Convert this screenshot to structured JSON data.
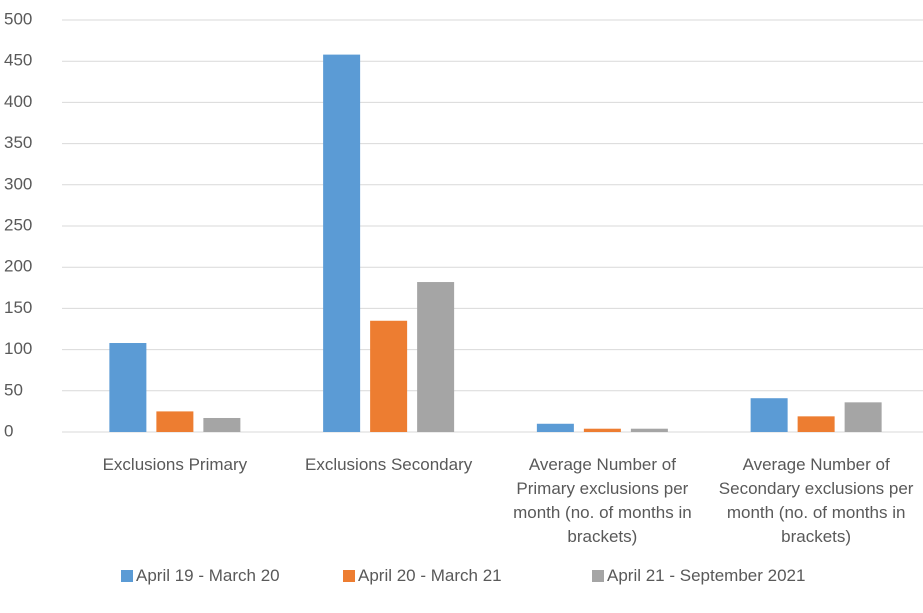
{
  "chart_data": {
    "type": "bar",
    "categories": [
      "Exclusions Primary",
      "Exclusions Secondary",
      "Average Number of Primary exclusions per month (no. of months in brackets)",
      "Average Number of Secondary exclusions per month (no. of months in brackets)"
    ],
    "series": [
      {
        "name": "April 19 - March 20",
        "color": "#5b9bd5",
        "values": [
          108,
          458,
          10,
          41
        ]
      },
      {
        "name": "April 20 - March 21",
        "color": "#ed7d31",
        "values": [
          25,
          135,
          4,
          19
        ]
      },
      {
        "name": "April 21 - September 2021",
        "color": "#a5a5a5",
        "values": [
          17,
          182,
          4,
          36
        ]
      }
    ],
    "ylim": [
      0,
      500
    ],
    "yticks": [
      0,
      50,
      100,
      150,
      200,
      250,
      300,
      350,
      400,
      450,
      500
    ],
    "grid": true,
    "legend": "bottom"
  }
}
